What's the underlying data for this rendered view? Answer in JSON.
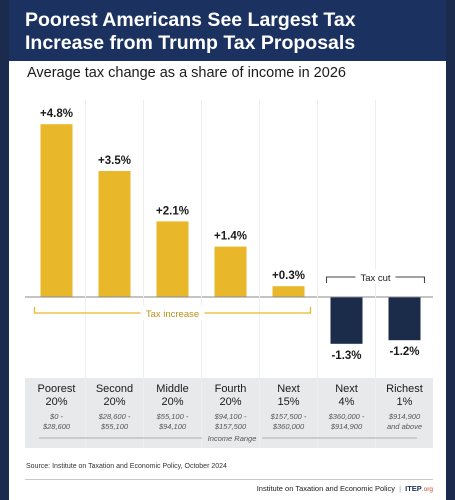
{
  "header": {
    "title": "Poorest Americans See Largest Tax Increase from Trump Tax Proposals"
  },
  "subtitle": "Average tax change as a share of income in 2026",
  "chart_data": {
    "type": "bar",
    "categories": [
      "Poorest 20%",
      "Second 20%",
      "Middle 20%",
      "Fourth 20%",
      "Next 15%",
      "Next 4%",
      "Richest 1%"
    ],
    "group_lines": [
      [
        "Poorest",
        "20%"
      ],
      [
        "Second",
        "20%"
      ],
      [
        "Middle",
        "20%"
      ],
      [
        "Fourth",
        "20%"
      ],
      [
        "Next",
        "15%"
      ],
      [
        "Next",
        "4%"
      ],
      [
        "Richest",
        "1%"
      ]
    ],
    "income_ranges": [
      [
        "$0 -",
        "$28,600"
      ],
      [
        "$28,600 -",
        "$55,100"
      ],
      [
        "$55,100 -",
        "$94,100"
      ],
      [
        "$94,100 -",
        "$157,500"
      ],
      [
        "$157,500 -",
        "$360,000"
      ],
      [
        "$360,000 -",
        "$914,900"
      ],
      [
        "$914,900",
        "and above"
      ]
    ],
    "values": [
      4.8,
      3.5,
      2.1,
      1.4,
      0.3,
      -1.3,
      -1.2
    ],
    "value_labels": [
      "+4.8%",
      "+3.5%",
      "+2.1%",
      "+1.4%",
      "+0.3%",
      "-1.3%",
      "-1.2%"
    ],
    "unit": "%",
    "ylim": [
      -2.2,
      5.2
    ],
    "grid": false,
    "colors": {
      "increase": "#e8b72a",
      "cut": "#1b2b4a",
      "bracket_increase": "#e8b72a",
      "bracket_cut": "#444444"
    },
    "annotations": {
      "increase": "Tax increase",
      "cut": "Tax cut"
    },
    "axis_caption": "Income Range"
  },
  "source": "Source: Institute on Taxation and Economic Policy, October 2024",
  "publisher": {
    "name": "Institute on Taxation and Economic Policy",
    "separator": "|",
    "brand": "ITEP",
    "brand_suffix": ".org"
  }
}
